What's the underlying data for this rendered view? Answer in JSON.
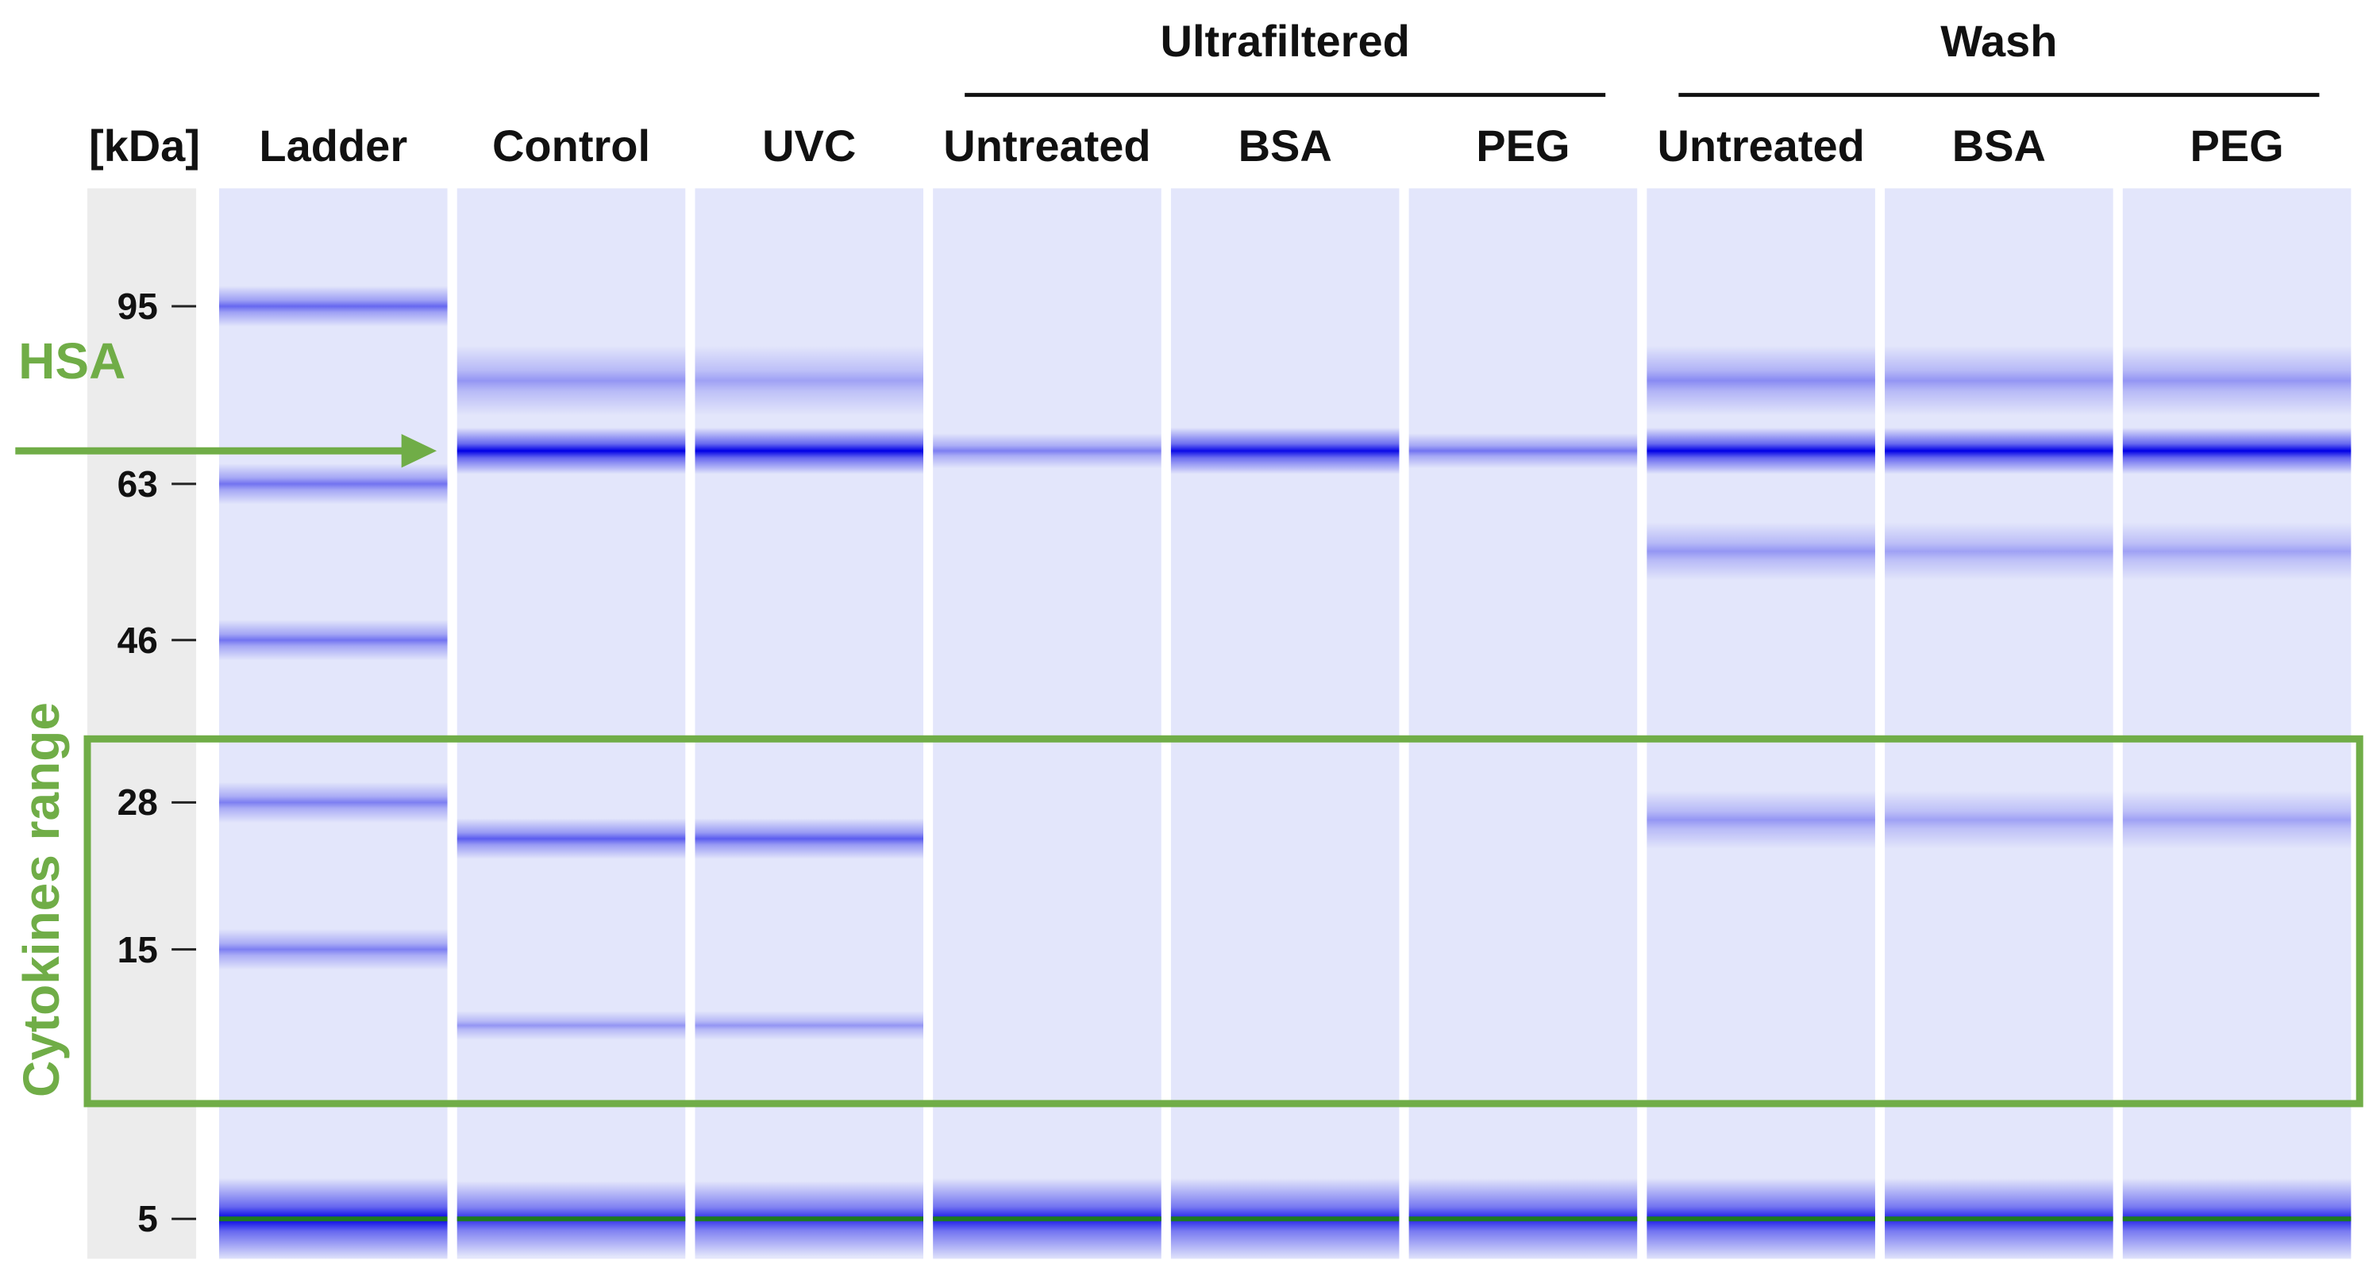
{
  "unit_label": "[kDa]",
  "groups": [
    {
      "label": "Ultrafiltered",
      "lanes": [
        3,
        4,
        5
      ]
    },
    {
      "label": "Wash",
      "lanes": [
        6,
        7,
        8
      ]
    }
  ],
  "lanes": [
    {
      "label": "Ladder",
      "bands": [
        [
          95,
          0.55,
          0.7
        ],
        [
          63,
          0.5,
          0.7
        ],
        [
          46,
          0.5,
          0.7
        ],
        [
          28,
          0.45,
          0.7
        ],
        [
          15,
          0.45,
          0.7
        ],
        [
          5,
          1.0,
          1.4
        ]
      ]
    },
    {
      "label": "Control",
      "bands": [
        [
          80,
          0.35,
          1.2
        ],
        [
          68,
          1.0,
          0.8
        ],
        [
          24,
          0.6,
          0.7
        ],
        [
          11,
          0.35,
          0.5
        ],
        [
          5,
          0.8,
          1.3
        ]
      ]
    },
    {
      "label": "UVC",
      "bands": [
        [
          80,
          0.3,
          1.2
        ],
        [
          68,
          1.0,
          0.8
        ],
        [
          24,
          0.6,
          0.7
        ],
        [
          11,
          0.35,
          0.5
        ],
        [
          5,
          0.8,
          1.3
        ]
      ]
    },
    {
      "label": "Untreated",
      "bands": [
        [
          68,
          0.45,
          0.6
        ],
        [
          5,
          0.9,
          1.4
        ]
      ]
    },
    {
      "label": "BSA",
      "bands": [
        [
          68,
          0.95,
          0.8
        ],
        [
          5,
          0.85,
          1.4
        ]
      ]
    },
    {
      "label": "PEG",
      "bands": [
        [
          68,
          0.5,
          0.6
        ],
        [
          5,
          0.85,
          1.4
        ]
      ]
    },
    {
      "label": "Untreated",
      "bands": [
        [
          80,
          0.4,
          1.2
        ],
        [
          68,
          1.0,
          0.8
        ],
        [
          55,
          0.35,
          1.0
        ],
        [
          26,
          0.35,
          1.0
        ],
        [
          5,
          0.9,
          1.4
        ]
      ]
    },
    {
      "label": "BSA",
      "bands": [
        [
          80,
          0.35,
          1.2
        ],
        [
          68,
          1.0,
          0.8
        ],
        [
          55,
          0.3,
          1.0
        ],
        [
          26,
          0.3,
          1.0
        ],
        [
          5,
          0.85,
          1.4
        ]
      ]
    },
    {
      "label": "PEG",
      "bands": [
        [
          80,
          0.35,
          1.2
        ],
        [
          68,
          1.0,
          0.8
        ],
        [
          55,
          0.3,
          1.0
        ],
        [
          26,
          0.3,
          1.0
        ],
        [
          5,
          0.85,
          1.4
        ]
      ]
    }
  ],
  "markers": [
    95,
    63,
    46,
    28,
    15,
    5
  ],
  "annotations": {
    "hsa_label": "HSA",
    "hsa_kda": 68,
    "cytokines_label": "Cytokines range",
    "cytokines_range_kda": [
      34,
      8
    ]
  },
  "colors": {
    "band": "#0000e6",
    "lane_background": "#e3e6fb",
    "marker_column": "#ececec",
    "annotation": "#70ad47",
    "dye_front": "#1e7a1e"
  }
}
